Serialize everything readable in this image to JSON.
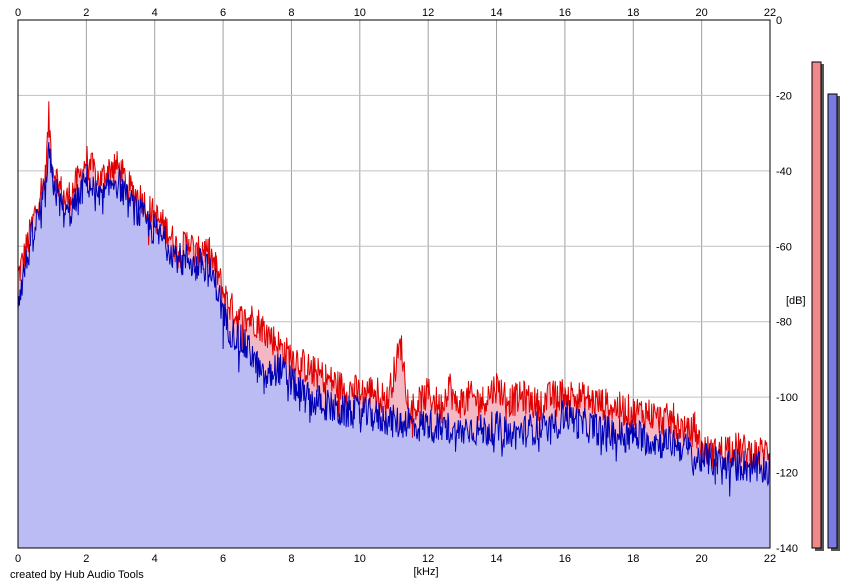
{
  "credit": "created by Hub Audio Tools",
  "chart_data": {
    "type": "area",
    "xlabel": "[kHz]",
    "ylabel": "[dB]",
    "xlim": [
      0,
      22
    ],
    "ylim": [
      -140,
      0
    ],
    "x_ticks": [
      0,
      2,
      4,
      6,
      8,
      10,
      12,
      14,
      16,
      18,
      20,
      22
    ],
    "y_ticks": [
      0,
      -20,
      -40,
      -60,
      -80,
      -100,
      -120,
      -140
    ],
    "grid": true,
    "colors": {
      "red_line": "#e00000",
      "red_fill": "#f4b8c4",
      "blue_line": "#0000b4",
      "blue_fill": "#bcbcf4",
      "red_meter": "#f08a8a",
      "blue_meter": "#7a7ae0"
    },
    "series": [
      {
        "color": "red",
        "x": [
          0,
          0.2,
          0.4,
          0.6,
          0.8,
          0.9,
          1.0,
          1.2,
          1.4,
          1.6,
          1.8,
          2.0,
          2.2,
          2.4,
          2.6,
          2.8,
          3.0,
          3.2,
          3.4,
          3.6,
          3.8,
          4.0,
          4.2,
          4.4,
          4.6,
          4.8,
          5.0,
          5.2,
          5.4,
          5.6,
          5.8,
          6.0,
          6.2,
          6.4,
          6.6,
          6.8,
          7.0,
          7.2,
          7.4,
          7.6,
          7.8,
          8.0,
          8.2,
          8.4,
          8.6,
          8.8,
          9.0,
          9.2,
          9.4,
          9.6,
          9.8,
          10.0,
          10.4,
          10.8,
          11.2,
          11.4,
          11.6,
          12.0,
          12.4,
          12.6,
          12.8,
          13.2,
          13.6,
          14.0,
          14.4,
          14.8,
          15.2,
          15.6,
          16.0,
          16.4,
          16.8,
          17.2,
          17.6,
          18.0,
          18.4,
          18.8,
          19.2,
          19.6,
          19.8,
          20.0,
          20.4,
          20.8,
          21.2,
          21.6,
          22.0
        ],
        "y": [
          -68,
          -62,
          -55,
          -47,
          -42,
          -26,
          -38,
          -44,
          -48,
          -45,
          -42,
          -37,
          -40,
          -43,
          -40,
          -38,
          -40,
          -44,
          -46,
          -47,
          -50,
          -52,
          -54,
          -56,
          -60,
          -61,
          -58,
          -63,
          -60,
          -62,
          -66,
          -72,
          -76,
          -78,
          -80,
          -79,
          -80,
          -82,
          -84,
          -86,
          -88,
          -89,
          -90,
          -92,
          -93,
          -94,
          -95,
          -96,
          -97,
          -98,
          -98,
          -99,
          -98,
          -101,
          -86,
          -100,
          -103,
          -99,
          -103,
          -96,
          -102,
          -100,
          -101,
          -97,
          -101,
          -100,
          -102,
          -100,
          -99,
          -100,
          -101,
          -102,
          -103,
          -104,
          -104,
          -106,
          -106,
          -110,
          -108,
          -114,
          -115,
          -113,
          -114,
          -115,
          -114
        ]
      },
      {
        "color": "blue",
        "x": [
          0,
          0.2,
          0.4,
          0.6,
          0.8,
          0.9,
          1.0,
          1.2,
          1.4,
          1.6,
          1.8,
          2.0,
          2.2,
          2.4,
          2.6,
          2.8,
          3.0,
          3.2,
          3.4,
          3.6,
          3.8,
          4.0,
          4.2,
          4.4,
          4.6,
          4.8,
          5.0,
          5.2,
          5.4,
          5.6,
          5.8,
          6.0,
          6.2,
          6.4,
          6.6,
          6.8,
          7.0,
          7.2,
          7.4,
          7.6,
          7.8,
          8.0,
          8.2,
          8.4,
          8.6,
          8.8,
          9.0,
          9.2,
          9.4,
          9.6,
          9.8,
          10.0,
          10.4,
          10.8,
          11.2,
          11.4,
          11.6,
          12.0,
          12.4,
          12.6,
          12.8,
          13.2,
          13.6,
          14.0,
          14.4,
          14.8,
          15.2,
          15.6,
          16.0,
          16.4,
          16.8,
          17.2,
          17.6,
          18.0,
          18.4,
          18.8,
          19.2,
          19.6,
          19.8,
          20.0,
          20.4,
          20.8,
          21.2,
          21.6,
          22.0
        ],
        "y": [
          -74,
          -66,
          -58,
          -52,
          -46,
          -36,
          -42,
          -48,
          -52,
          -50,
          -47,
          -42,
          -45,
          -48,
          -46,
          -42,
          -44,
          -48,
          -50,
          -52,
          -54,
          -56,
          -58,
          -60,
          -62,
          -64,
          -63,
          -66,
          -64,
          -67,
          -70,
          -78,
          -82,
          -84,
          -86,
          -88,
          -92,
          -96,
          -94,
          -92,
          -94,
          -96,
          -98,
          -100,
          -101,
          -101,
          -102,
          -103,
          -104,
          -104,
          -104,
          -104,
          -105,
          -106,
          -107,
          -106,
          -108,
          -107,
          -109,
          -108,
          -110,
          -108,
          -109,
          -108,
          -110,
          -109,
          -108,
          -109,
          -104,
          -107,
          -108,
          -109,
          -110,
          -110,
          -111,
          -112,
          -112,
          -114,
          -117,
          -116,
          -117,
          -118,
          -118,
          -119,
          -119
        ]
      }
    ]
  }
}
